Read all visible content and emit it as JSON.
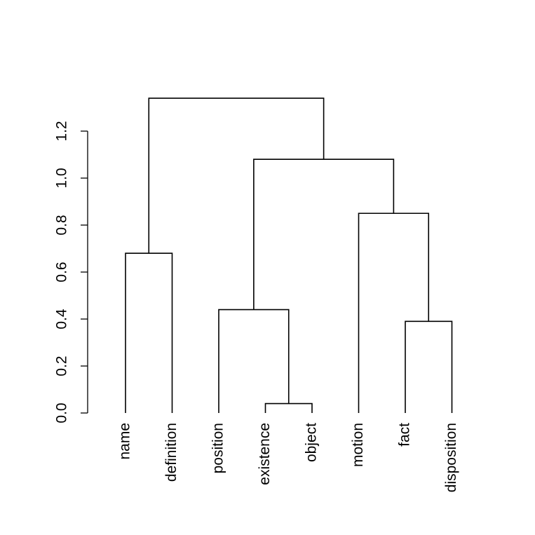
{
  "chart_data": {
    "type": "dendrogram",
    "title": "",
    "xlabel": "",
    "ylabel": "",
    "ylim": [
      0,
      1.2
    ],
    "y_ticks": [
      0.0,
      0.2,
      0.4,
      0.6,
      0.8,
      1.0,
      1.2
    ],
    "y_tick_labels": [
      "0.0",
      "0.2",
      "0.4",
      "0.6",
      "0.8",
      "1.0",
      "1.2"
    ],
    "leaves": [
      "name",
      "definition",
      "position",
      "existence",
      "object",
      "motion",
      "fact",
      "disposition"
    ],
    "merges": [
      {
        "left": "existence",
        "right": "object",
        "height": 0.04
      },
      {
        "left": "fact",
        "right": "disposition",
        "height": 0.39
      },
      {
        "left": "position",
        "right": "existence+object",
        "height": 0.44
      },
      {
        "left": "name",
        "right": "definition",
        "height": 0.68
      },
      {
        "left": "motion",
        "right": "fact+disposition",
        "height": 0.85
      },
      {
        "left": "position+existence+object",
        "right": "motion+fact+disposition",
        "height": 1.08
      },
      {
        "left": "name+definition",
        "right": "position+existence+object+motion+fact+disposition",
        "height": 1.34
      }
    ]
  }
}
